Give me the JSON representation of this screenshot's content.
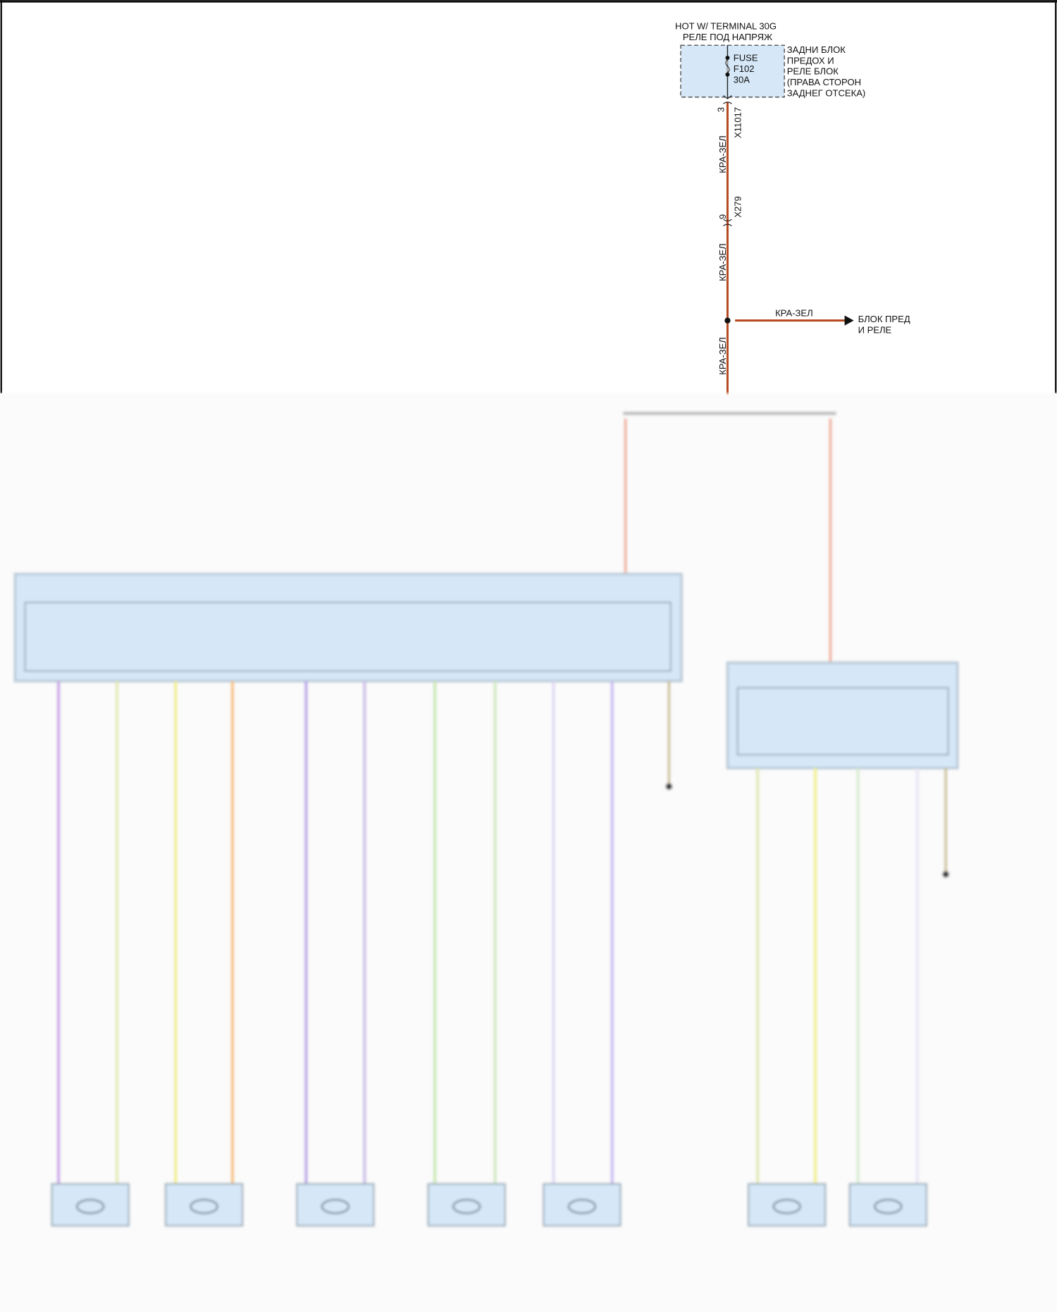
{
  "power_source": {
    "line1": "HOT W/ TERMINAL 30G",
    "line2": "РЕЛЕ ПОД НАПРЯЖ"
  },
  "fuse": {
    "label": "FUSE",
    "id": "F102",
    "rating": "30A"
  },
  "fuse_block": {
    "lines": [
      "ЗАДНИ БЛОК",
      "ПРЕДОХ И",
      "РЕЛЕ БЛОК",
      "(ПРАВА СТОРОН",
      "ЗАДНЕГ ОТСЕКА)"
    ]
  },
  "connectors": [
    {
      "pin": "3",
      "name": "X11017"
    },
    {
      "pin": "9",
      "name": "X279"
    }
  ],
  "wire_color_label": "КРА-ЗЕЛ",
  "branch": {
    "wire_label": "КРА-ЗЕЛ",
    "dest_line1": "БЛОК ПРЕД",
    "dest_line2": "И РЕЛЕ"
  },
  "colors": {
    "power_wire": "#b5481f",
    "module_fill": "#d6e8f8",
    "feed_wire": "#f0a58a"
  }
}
